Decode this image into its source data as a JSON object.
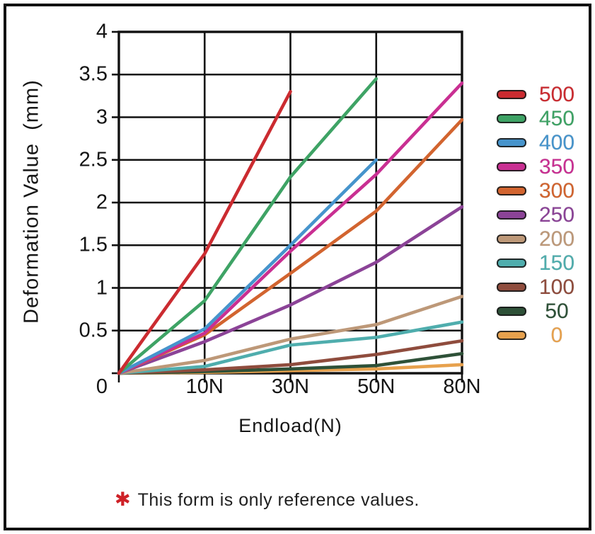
{
  "chart_data": {
    "type": "line",
    "title": "",
    "xlabel": "Endload(N)",
    "ylabel": "Deformation Value  (mm)",
    "categories": [
      "0",
      "10N",
      "30N",
      "50N",
      "80N"
    ],
    "y_tick_labels": [
      "4",
      "3.5",
      "3",
      "2.5",
      "2",
      "1.5",
      "1",
      "0.5"
    ],
    "ylim": [
      0,
      4
    ],
    "y_grid_step": 0.5,
    "grid": true,
    "legend_position": "right",
    "axis_color": "#111111",
    "series": [
      {
        "name": "500",
        "color": "#cb2b30",
        "values": [
          0,
          1.4,
          3.3,
          null,
          null
        ]
      },
      {
        "name": "450",
        "color": "#3ea365",
        "values": [
          0,
          0.85,
          2.3,
          3.45,
          null
        ]
      },
      {
        "name": "400",
        "color": "#4694cc",
        "values": [
          0,
          0.52,
          1.5,
          2.5,
          null
        ]
      },
      {
        "name": "350",
        "color": "#c92f92",
        "values": [
          0,
          0.47,
          1.43,
          2.33,
          3.4
        ]
      },
      {
        "name": "300",
        "color": "#d2642f",
        "values": [
          0,
          0.45,
          1.17,
          1.9,
          2.97
        ]
      },
      {
        "name": "250",
        "color": "#8b4397",
        "values": [
          0,
          0.37,
          0.8,
          1.3,
          1.95
        ]
      },
      {
        "name": "200",
        "color": "#bd9878",
        "values": [
          0,
          0.15,
          0.4,
          0.57,
          0.9
        ]
      },
      {
        "name": "150",
        "color": "#4fadad",
        "values": [
          0,
          0.08,
          0.33,
          0.42,
          0.6
        ]
      },
      {
        "name": "100",
        "color": "#8f4c3d",
        "values": [
          0,
          0.04,
          0.1,
          0.22,
          0.38
        ]
      },
      {
        "name": "50",
        "color": "#2e5138",
        "values": [
          0,
          0.02,
          0.05,
          0.09,
          0.23
        ]
      },
      {
        "name": "0",
        "color": "#e7a14d",
        "values": [
          0,
          0.01,
          0.03,
          0.05,
          0.1
        ]
      }
    ]
  },
  "footnote": {
    "marker": "✱",
    "marker_color": "#ce2127",
    "text": "This form is only reference values."
  }
}
